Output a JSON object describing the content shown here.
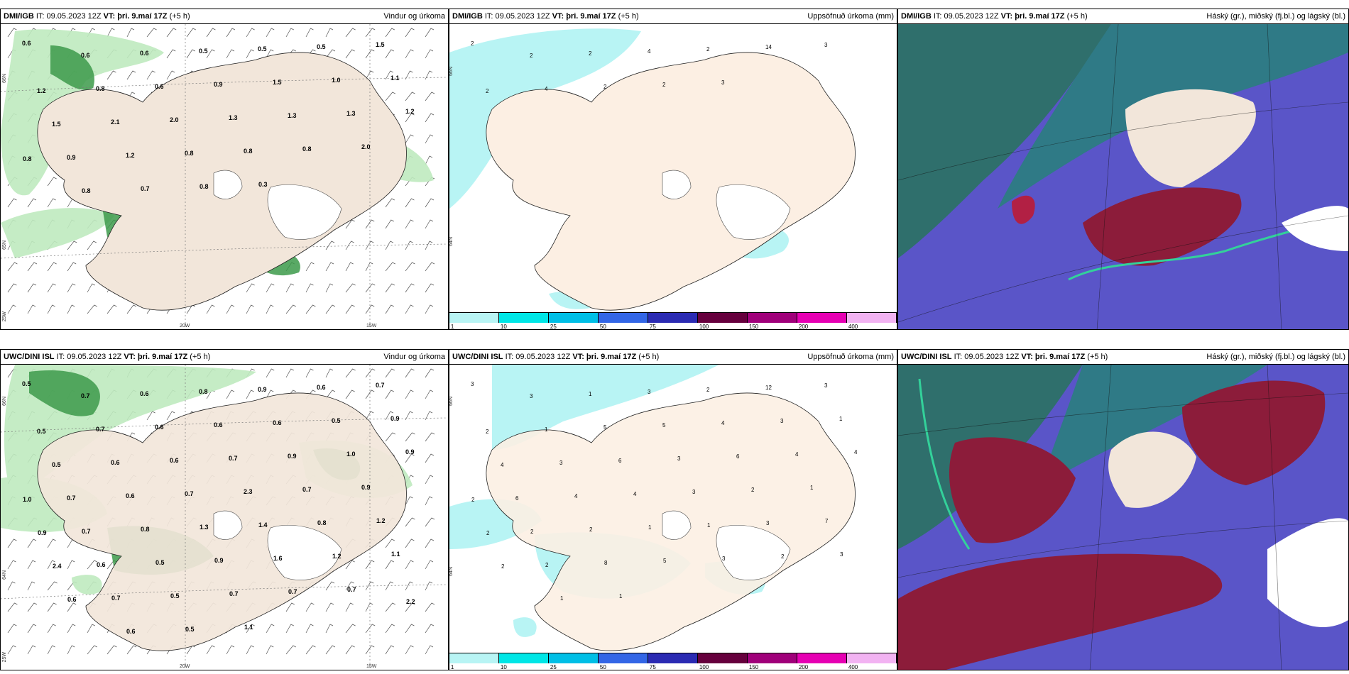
{
  "panels": [
    {
      "model": "DMI/IGB",
      "it": "IT: 09.05.2023 12Z",
      "vt": "VT: þri. 9.maí 17Z",
      "lead": "(+5 h)",
      "title": "Vindur og úrkoma",
      "lat_labels": [
        "66N",
        "65N",
        "25W"
      ],
      "lon_labels": [
        "20W",
        "15W"
      ],
      "values": [
        "0.6",
        "0.6",
        "0.6",
        "0.5",
        "0.5",
        "0.5",
        "1.5",
        "1.2",
        "0.8",
        "0.6",
        "0.9",
        "1.5",
        "1.0",
        "1.1",
        "1.5",
        "2.1",
        "2.0",
        "1.3",
        "1.3",
        "1.3",
        "1.2",
        "0.9",
        "1.2",
        "0.8",
        "0.8",
        "0.8",
        "2.0",
        "0.8",
        "0.8",
        "0.7",
        "0.8",
        "0.3"
      ]
    },
    {
      "model": "DMI/IGB",
      "it": "IT: 09.05.2023 12Z",
      "vt": "VT: þri. 9.maí 17Z",
      "lead": "(+5 h)",
      "title": "Uppsöfnuð úrkoma (mm)",
      "lat_labels": [
        "66N",
        "64N"
      ],
      "values": [
        "2",
        "2",
        "2",
        "4",
        "2",
        "14",
        "3",
        "2",
        "4",
        "2",
        "2",
        "3"
      ]
    },
    {
      "model": "DMI/IGB",
      "it": "IT: 09.05.2023 12Z",
      "vt": "VT: þri. 9.maí 17Z",
      "lead": "(+5 h)",
      "title": "Háský (gr.), miðský (fj.bl.) og lágský (bl.)"
    },
    {
      "model": "UWC/DINI ISL",
      "it": "IT: 09.05.2023 12Z",
      "vt": "VT: þri. 9.maí 17Z",
      "lead": "(+5 h)",
      "title": "Vindur og úrkoma",
      "lat_labels": [
        "66N",
        "64N",
        "25W"
      ],
      "lon_labels": [
        "20W",
        "15W"
      ],
      "values": [
        "0.5",
        "0.7",
        "0.6",
        "0.8",
        "0.9",
        "0.6",
        "0.7",
        "0.5",
        "0.7",
        "0.6",
        "0.6",
        "0.6",
        "0.5",
        "0.9",
        "0.5",
        "0.6",
        "0.6",
        "0.7",
        "0.9",
        "1.0",
        "0.9",
        "0.7",
        "0.6",
        "0.7",
        "2.3",
        "0.7",
        "0.9",
        "1.0",
        "0.7",
        "0.8",
        "1.3",
        "1.4",
        "0.8",
        "1.2",
        "0.9",
        "0.6",
        "0.5",
        "0.9",
        "1.6",
        "1.2",
        "1.1",
        "2.4",
        "0.7",
        "0.5",
        "0.7",
        "0.7",
        "0.7",
        "2.2",
        "0.6",
        "0.6",
        "0.5",
        "1.1"
      ]
    },
    {
      "model": "UWC/DINI ISL",
      "it": "IT: 09.05.2023 12Z",
      "vt": "VT: þri. 9.maí 17Z",
      "lead": "(+5 h)",
      "title": "Uppsöfnuð úrkoma (mm)",
      "lat_labels": [
        "66N",
        "64N"
      ],
      "values": [
        "3",
        "3",
        "1",
        "3",
        "2",
        "12",
        "3",
        "2",
        "1",
        "5",
        "5",
        "4",
        "3",
        "1",
        "4",
        "3",
        "6",
        "3",
        "6",
        "4",
        "4",
        "6",
        "4",
        "4",
        "3",
        "2",
        "1",
        "2",
        "2",
        "2",
        "1",
        "1",
        "3",
        "7",
        "2",
        "2",
        "8",
        "5",
        "3",
        "2",
        "3",
        "2",
        "1",
        "1"
      ]
    },
    {
      "model": "UWC/DINI ISL",
      "it": "IT: 09.05.2023 12Z",
      "vt": "VT: þri. 9.maí 17Z",
      "lead": "(+5 h)",
      "title": "Háský (gr.), miðský (fj.bl.) og lágský (bl.)"
    }
  ],
  "colorbar": {
    "colors": [
      "#b8f4f4",
      "#00e6e6",
      "#00bfe6",
      "#3366e6",
      "#2b2bb3",
      "#66003d",
      "#a0007a",
      "#e600b3",
      "#f2b3f2"
    ],
    "labels": [
      "1",
      "10",
      "25",
      "50",
      "75",
      "100",
      "150",
      "200",
      "400"
    ]
  },
  "colors": {
    "land": "#f2e6da",
    "land_precip": "#fcefe3",
    "sea_cloud_dark": "#2f6f6c",
    "cloud_blue": "#5a55c8",
    "cloud_red": "#8c1c3a",
    "precip_green": "#3c9a4a"
  }
}
